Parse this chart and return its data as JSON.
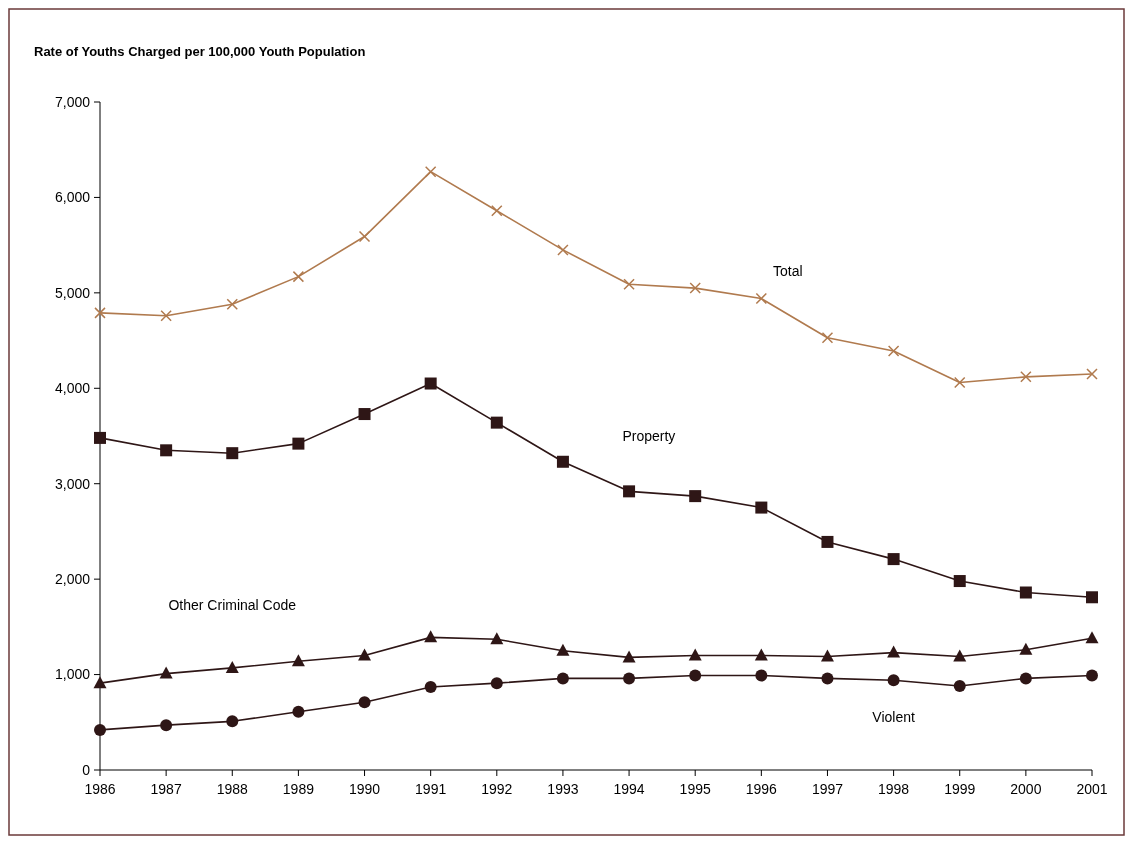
{
  "chart_data": {
    "type": "line",
    "title": "Rate of Youths Charged per 100,000 Youth Population",
    "categories": [
      "1986",
      "1987",
      "1988",
      "1989",
      "1990",
      "1991",
      "1992",
      "1993",
      "1994",
      "1995",
      "1996",
      "1997",
      "1998",
      "1999",
      "2000",
      "2001"
    ],
    "ylim": [
      0,
      7000
    ],
    "yticks": [
      {
        "value": 0,
        "label": "0"
      },
      {
        "value": 1000,
        "label": "1,000"
      },
      {
        "value": 2000,
        "label": "2,000"
      },
      {
        "value": 3000,
        "label": "3,000"
      },
      {
        "value": 4000,
        "label": "4,000"
      },
      {
        "value": 5000,
        "label": "5,000"
      },
      {
        "value": 6000,
        "label": "6,000"
      },
      {
        "value": 7000,
        "label": "7,000"
      }
    ],
    "grid": false,
    "legend": false,
    "series": [
      {
        "name": "Total",
        "color": "#b07a4e",
        "marker": "cross",
        "values": [
          4790,
          4760,
          4880,
          5170,
          5590,
          6270,
          5860,
          5450,
          5090,
          5050,
          4940,
          4530,
          4390,
          4060,
          4120,
          4150
        ]
      },
      {
        "name": "Property",
        "color": "#2e1616",
        "marker": "square",
        "values": [
          3480,
          3350,
          3320,
          3420,
          3730,
          4050,
          3640,
          3230,
          2920,
          2870,
          2750,
          2390,
          2210,
          1980,
          1860,
          1810
        ]
      },
      {
        "name": "Other Criminal Code",
        "color": "#2e1616",
        "marker": "triangle",
        "values": [
          910,
          1010,
          1070,
          1140,
          1200,
          1390,
          1370,
          1250,
          1180,
          1200,
          1200,
          1190,
          1230,
          1190,
          1260,
          1380
        ]
      },
      {
        "name": "Violent",
        "color": "#2e1616",
        "marker": "circle",
        "values": [
          420,
          470,
          510,
          610,
          710,
          870,
          910,
          960,
          960,
          990,
          990,
          960,
          940,
          880,
          960,
          990
        ]
      }
    ]
  }
}
